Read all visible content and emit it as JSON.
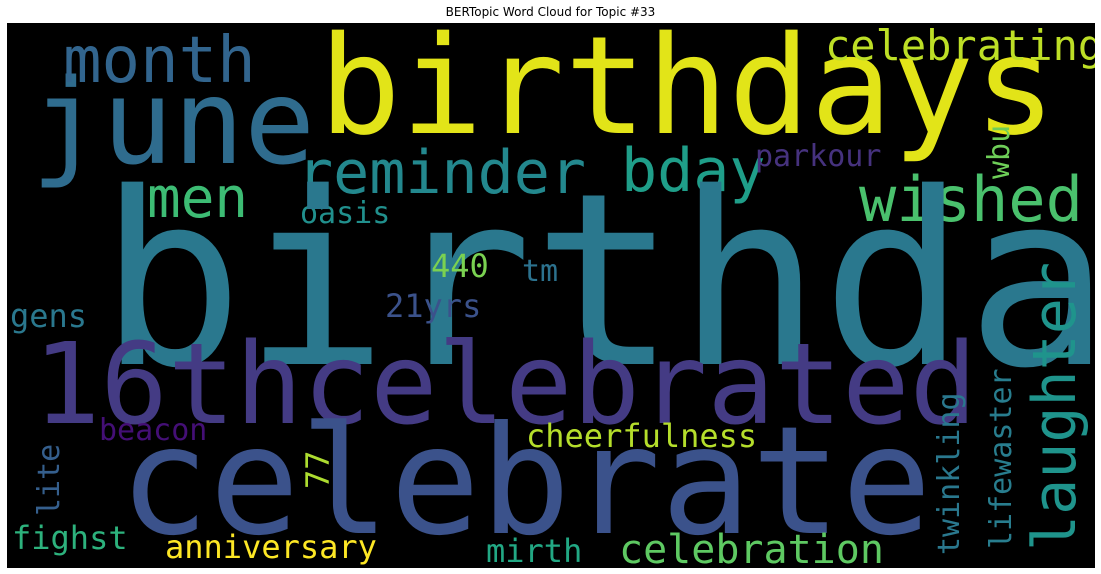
{
  "title": "BERTopic Word Cloud for Topic #33",
  "words": {
    "birthday": {
      "text": "birthday",
      "color": "#2a788e"
    },
    "birthdays": {
      "text": "birthdays",
      "color": "#e2e418"
    },
    "celebrate": {
      "text": "celebrate",
      "color": "#3b528b"
    },
    "16thcelebrated": {
      "text": "16thcelebrated",
      "color": "#443b84"
    },
    "june": {
      "text": "june",
      "color": "#2f6c8e"
    },
    "month": {
      "text": "month",
      "color": "#32658e"
    },
    "reminder": {
      "text": "reminder",
      "color": "#23888e"
    },
    "bday": {
      "text": "bday",
      "color": "#1f9e89"
    },
    "men": {
      "text": "men",
      "color": "#3dbc74"
    },
    "wished": {
      "text": "wished",
      "color": "#4ac16d"
    },
    "celebrating": {
      "text": "celebrating",
      "color": "#bddf26"
    },
    "laughter": {
      "text": "laughter",
      "color": "#1f948c"
    },
    "parkour": {
      "text": "parkour",
      "color": "#46327e"
    },
    "wbu": {
      "text": "wbu",
      "color": "#6ece58"
    },
    "oasis": {
      "text": "oasis",
      "color": "#21908d"
    },
    "440": {
      "text": "440",
      "color": "#7ad151"
    },
    "tm": {
      "text": "tm",
      "color": "#2c728e"
    },
    "21yrs": {
      "text": "21yrs",
      "color": "#3b528b"
    },
    "gens": {
      "text": "gens",
      "color": "#2a788e"
    },
    "beacon": {
      "text": "beacon",
      "color": "#440f76"
    },
    "cheerfulness": {
      "text": "cheerfulness",
      "color": "#b5de2b"
    },
    "77": {
      "text": "77",
      "color": "#addc30"
    },
    "lite": {
      "text": "lite",
      "color": "#355f8d"
    },
    "fighst": {
      "text": "fighst",
      "color": "#2db27d"
    },
    "anniversary": {
      "text": "anniversary",
      "color": "#fde725"
    },
    "mirth": {
      "text": "mirth",
      "color": "#22a884"
    },
    "celebration": {
      "text": "celebration",
      "color": "#5ec962"
    },
    "twinkling": {
      "text": "twinkling",
      "color": "#2a788e"
    },
    "lifewaster": {
      "text": "lifewaster",
      "color": "#287d8e"
    }
  }
}
